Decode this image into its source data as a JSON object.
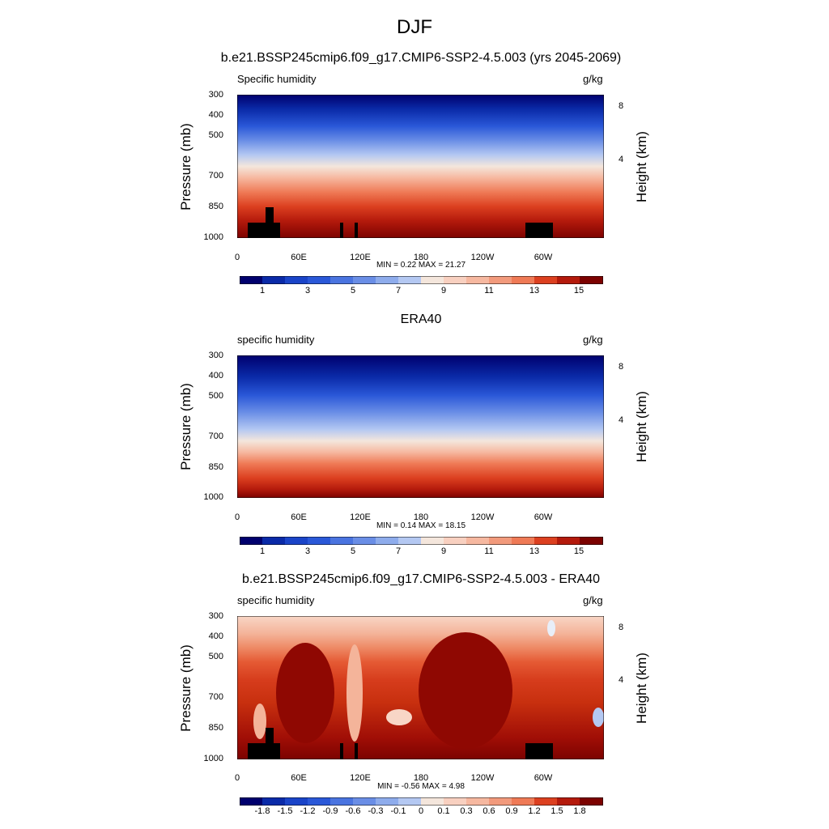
{
  "figure": {
    "title": "DJF"
  },
  "chart_data": [
    {
      "type": "heatmap",
      "title": "b.e21.BSSP245cmip6.f09_g17.CMIP6-SSP2-4.5.003 (yrs 2045-2069)",
      "left_label": "Specific humidity",
      "units": "g/kg",
      "ylabel": "Pressure (mb)",
      "y2label": "Height (km)",
      "xticks": [
        "0",
        "60E",
        "120E",
        "180",
        "120W",
        "60W"
      ],
      "yticks": [
        "300",
        "400",
        "500",
        "700",
        "850",
        "1000"
      ],
      "y2ticks": [
        "8",
        "4"
      ],
      "min_max_text": "MIN =   0.22  MAX =  21.27",
      "min": 0.22,
      "max": 21.27,
      "colorbar_labels": [
        "1",
        "3",
        "5",
        "7",
        "9",
        "11",
        "13",
        "15"
      ],
      "colorbar_levels": [
        0.5,
        1,
        2,
        3,
        4,
        5,
        6,
        7,
        8,
        9,
        10,
        11,
        12,
        13,
        14,
        15
      ],
      "colormap": "blue-white-red",
      "topography_mask": true
    },
    {
      "type": "heatmap",
      "title": "ERA40",
      "left_label": "specific humidity",
      "units": "g/kg",
      "ylabel": "Pressure (mb)",
      "y2label": "Height (km)",
      "xticks": [
        "0",
        "60E",
        "120E",
        "180",
        "120W",
        "60W"
      ],
      "yticks": [
        "300",
        "400",
        "500",
        "700",
        "850",
        "1000"
      ],
      "y2ticks": [
        "8",
        "4"
      ],
      "min_max_text": "MIN =   0.14  MAX =  18.15",
      "min": 0.14,
      "max": 18.15,
      "colorbar_labels": [
        "1",
        "3",
        "5",
        "7",
        "9",
        "11",
        "13",
        "15"
      ],
      "colorbar_levels": [
        0.5,
        1,
        2,
        3,
        4,
        5,
        6,
        7,
        8,
        9,
        10,
        11,
        12,
        13,
        14,
        15
      ],
      "colormap": "blue-white-red",
      "topography_mask": false
    },
    {
      "type": "heatmap",
      "title": "b.e21.BSSP245cmip6.f09_g17.CMIP6-SSP2-4.5.003 - ERA40",
      "left_label": "specific humidity",
      "units": "g/kg",
      "ylabel": "Pressure (mb)",
      "y2label": "Height (km)",
      "xticks": [
        "0",
        "60E",
        "120E",
        "180",
        "120W",
        "60W"
      ],
      "yticks": [
        "300",
        "400",
        "500",
        "700",
        "850",
        "1000"
      ],
      "y2ticks": [
        "8",
        "4"
      ],
      "min_max_text": "MIN =  -0.56  MAX =   4.98",
      "min": -0.56,
      "max": 4.98,
      "colorbar_labels": [
        "-1.8",
        "-1.5",
        "-1.2",
        "-0.9",
        "-0.6",
        "-0.3",
        "-0.1",
        "0",
        "0.1",
        "0.3",
        "0.6",
        "0.9",
        "1.2",
        "1.5",
        "1.8"
      ],
      "colorbar_levels": [
        -1.8,
        -1.5,
        -1.2,
        -0.9,
        -0.6,
        -0.3,
        -0.1,
        0,
        0.1,
        0.3,
        0.6,
        0.9,
        1.2,
        1.5,
        1.8
      ],
      "colormap": "blue-white-red",
      "topography_mask": true
    }
  ]
}
